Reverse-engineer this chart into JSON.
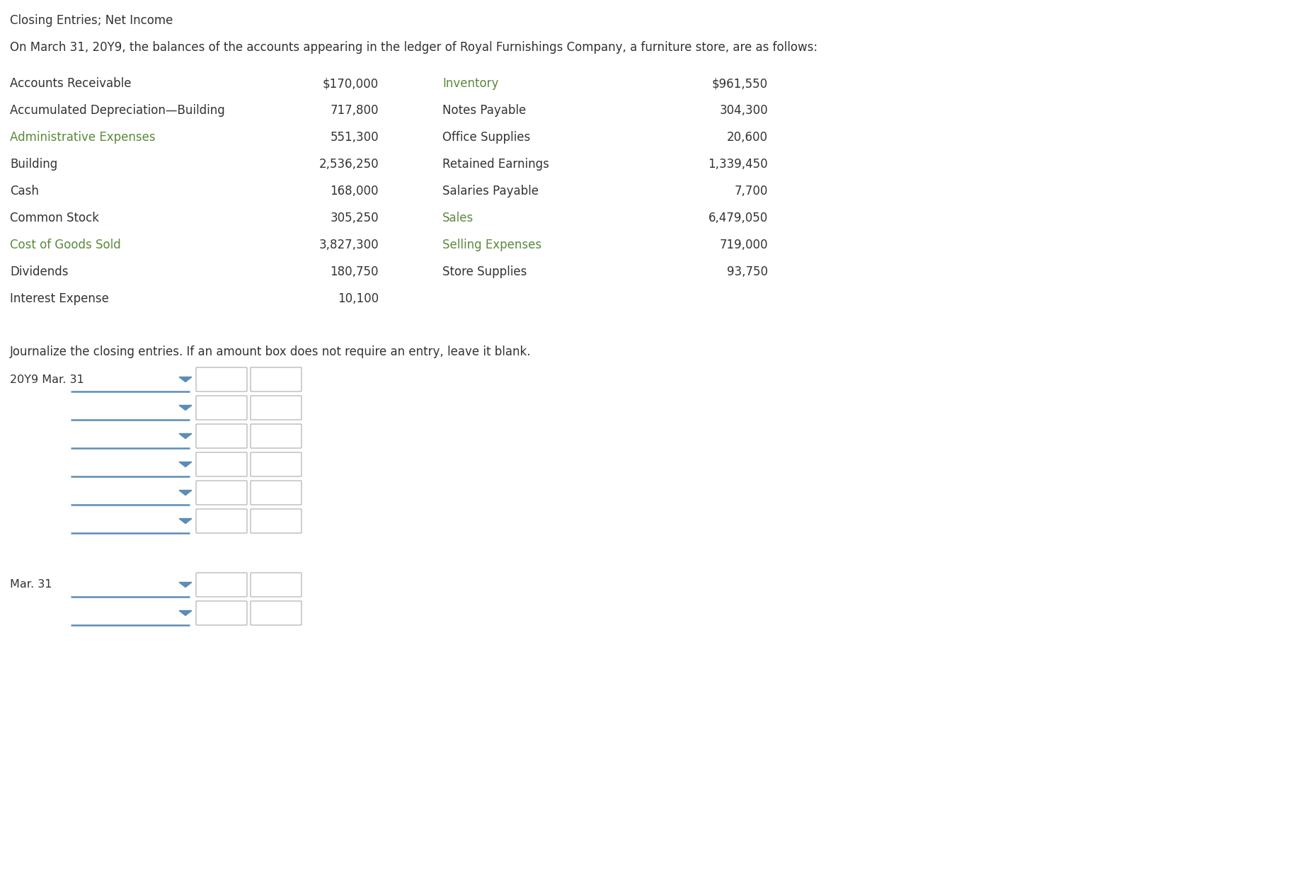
{
  "title": "Closing Entries; Net Income",
  "subtitle": "On March 31, 20Y9, the balances of the accounts appearing in the ledger of Royal Furnishings Company, a furniture store, are as follows:",
  "left_accounts": [
    {
      "name": "Accounts Receivable",
      "value": "$170,000",
      "color": "#333333"
    },
    {
      "name": "Accumulated Depreciation—Building",
      "value": "717,800",
      "color": "#333333"
    },
    {
      "name": "Administrative Expenses",
      "value": "551,300",
      "color": "#5a8a3c"
    },
    {
      "name": "Building",
      "value": "2,536,250",
      "color": "#333333"
    },
    {
      "name": "Cash",
      "value": "168,000",
      "color": "#333333"
    },
    {
      "name": "Common Stock",
      "value": "305,250",
      "color": "#333333"
    },
    {
      "name": "Cost of Goods Sold",
      "value": "3,827,300",
      "color": "#5a8a3c"
    },
    {
      "name": "Dividends",
      "value": "180,750",
      "color": "#333333"
    },
    {
      "name": "Interest Expense",
      "value": "10,100",
      "color": "#333333"
    }
  ],
  "right_accounts": [
    {
      "name": "Inventory",
      "value": "$961,550",
      "color": "#5a8a3c"
    },
    {
      "name": "Notes Payable",
      "value": "304,300",
      "color": "#333333"
    },
    {
      "name": "Office Supplies",
      "value": "20,600",
      "color": "#333333"
    },
    {
      "name": "Retained Earnings",
      "value": "1,339,450",
      "color": "#333333"
    },
    {
      "name": "Salaries Payable",
      "value": "7,700",
      "color": "#333333"
    },
    {
      "name": "Sales",
      "value": "6,479,050",
      "color": "#5a8a3c"
    },
    {
      "name": "Selling Expenses",
      "value": "719,000",
      "color": "#5a8a3c"
    },
    {
      "name": "Store Supplies",
      "value": "93,750",
      "color": "#333333"
    }
  ],
  "journal_instruction": "Journalize the closing entries. If an amount box does not require an entry, leave it blank.",
  "journal_section1_date": "20Y9 Mar. 31",
  "journal_section1_rows": 6,
  "journal_section2_date": "Mar. 31",
  "journal_section2_rows": 2,
  "bg_color": "#ffffff",
  "text_color": "#333333",
  "green_color": "#5a8a3c",
  "blue_line_color": "#5b8db8",
  "box_border_color": "#aaaaaa",
  "box_fill_color": "#ffffff"
}
